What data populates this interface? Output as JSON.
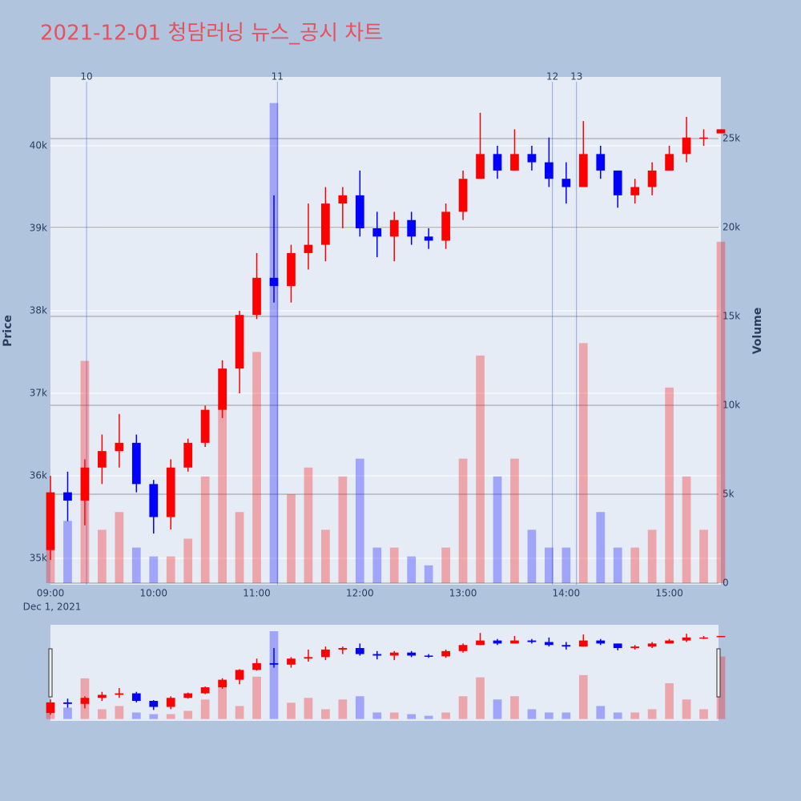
{
  "chart_data": {
    "type": "candlestick",
    "title": "2021-12-01 청담러닝 뉴스_공시 차트",
    "y_label": "Price",
    "y2_label": "Volume",
    "x_date_label": "Dec 1, 2021",
    "increasing_color": "#ff0000",
    "decreasing_color": "#0000ff",
    "x": [
      "09:00",
      "09:10",
      "09:20",
      "09:30",
      "09:40",
      "09:50",
      "10:00",
      "10:10",
      "10:20",
      "10:30",
      "10:40",
      "10:50",
      "11:00",
      "11:10",
      "11:20",
      "11:30",
      "11:40",
      "11:50",
      "12:00",
      "12:10",
      "12:20",
      "12:30",
      "12:40",
      "12:50",
      "13:00",
      "13:10",
      "13:20",
      "13:30",
      "13:40",
      "13:50",
      "14:00",
      "14:10",
      "14:20",
      "14:30",
      "14:40",
      "14:50",
      "15:00",
      "15:10",
      "15:20",
      "15:30"
    ],
    "open": [
      35100,
      35800,
      35700,
      36100,
      36300,
      36400,
      35900,
      35500,
      36100,
      36400,
      36800,
      37300,
      37950,
      38400,
      38300,
      38700,
      38800,
      39300,
      39400,
      39000,
      38900,
      39100,
      38900,
      38850,
      39200,
      39600,
      39900,
      39700,
      39900,
      39800,
      39600,
      39500,
      39900,
      39700,
      39400,
      39500,
      39700,
      39900,
      40100,
      40150
    ],
    "high": [
      36000,
      36050,
      36200,
      36500,
      36750,
      36500,
      35950,
      36200,
      36450,
      36850,
      37400,
      38000,
      38700,
      39400,
      38800,
      39300,
      39500,
      39500,
      39700,
      39200,
      39200,
      39200,
      39000,
      39300,
      39700,
      40400,
      40000,
      40200,
      40000,
      40100,
      39800,
      40300,
      40000,
      39700,
      39600,
      39800,
      40000,
      40350,
      40200,
      40200
    ],
    "low": [
      34980,
      35450,
      35400,
      35900,
      36100,
      35800,
      35300,
      35350,
      36050,
      36350,
      36700,
      37000,
      37900,
      38100,
      38100,
      38500,
      38600,
      39000,
      38900,
      38650,
      38600,
      38800,
      38750,
      38750,
      39100,
      39600,
      39600,
      39700,
      39700,
      39500,
      39300,
      39500,
      39600,
      39250,
      39300,
      39400,
      39700,
      39800,
      40000,
      40150
    ],
    "close": [
      35800,
      35700,
      36100,
      36300,
      36400,
      35900,
      35500,
      36100,
      36400,
      36800,
      37300,
      37950,
      38400,
      38300,
      38700,
      38800,
      39300,
      39400,
      39000,
      38900,
      39100,
      38900,
      38850,
      39200,
      39600,
      39900,
      39700,
      39900,
      39800,
      39600,
      39500,
      39900,
      39700,
      39400,
      39500,
      39700,
      39900,
      40100,
      40100,
      40200
    ],
    "volume": [
      3000,
      3500,
      12500,
      3000,
      4000,
      2000,
      1500,
      1500,
      2500,
      6000,
      10000,
      4000,
      13000,
      27000,
      5000,
      6500,
      3000,
      6000,
      7000,
      2000,
      2000,
      1500,
      1000,
      2000,
      7000,
      12800,
      6000,
      7000,
      3000,
      2000,
      2000,
      13500,
      4000,
      2000,
      2000,
      3000,
      11000,
      6000,
      3000,
      19200
    ],
    "xlim": [
      "09:00",
      "15:30"
    ],
    "xticks": [
      "09:00",
      "10:00",
      "11:00",
      "12:00",
      "13:00",
      "14:00",
      "15:00"
    ],
    "ylim": [
      34680,
      40835
    ],
    "yticks": [
      {
        "value": 35000,
        "label": "35k"
      },
      {
        "value": 36000,
        "label": "36k"
      },
      {
        "value": 37000,
        "label": "37k"
      },
      {
        "value": 38000,
        "label": "38k"
      },
      {
        "value": 39000,
        "label": "39k"
      },
      {
        "value": 40000,
        "label": "40k"
      }
    ],
    "y2lim": [
      -90,
      28470
    ],
    "y2ticks": [
      0,
      {
        "value": 5000,
        "label": "5k"
      },
      {
        "value": 10000,
        "label": "10k"
      },
      {
        "value": 15000,
        "label": "15k"
      },
      {
        "value": 20000,
        "label": "20k"
      },
      {
        "value": 25000,
        "label": "25k"
      }
    ],
    "events": [
      {
        "x": "09:21",
        "label": "10"
      },
      {
        "x": "11:12",
        "label": "11"
      },
      {
        "x": "13:52",
        "label": "12"
      },
      {
        "x": "14:06",
        "label": "13"
      }
    ],
    "grid": true,
    "rangeslider": true
  }
}
